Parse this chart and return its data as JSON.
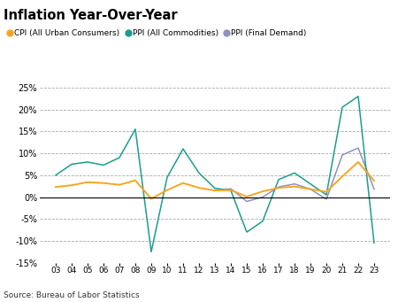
{
  "title": "Inflation Year-Over-Year",
  "source": "Source: Bureau of Labor Statistics",
  "x_labels": [
    "03",
    "04",
    "05",
    "06",
    "07",
    "08",
    "09",
    "10",
    "11",
    "12",
    "13",
    "14",
    "15",
    "16",
    "17",
    "18",
    "19",
    "20",
    "21",
    "22",
    "23"
  ],
  "cpi_color": "#F5A623",
  "ppi_all_color": "#1A9E8C",
  "ppi_fd_color": "#9090C0",
  "ylim": [
    -15,
    25
  ],
  "yticks": [
    -15,
    -10,
    -5,
    0,
    5,
    10,
    15,
    20,
    25
  ],
  "cpi": [
    2.3,
    2.7,
    3.4,
    3.2,
    2.8,
    3.8,
    -0.4,
    1.6,
    3.2,
    2.1,
    1.5,
    1.6,
    0.1,
    1.3,
    2.1,
    2.4,
    1.8,
    1.2,
    4.7,
    8.0,
    3.7
  ],
  "ppi_all": [
    5.0,
    7.5,
    8.0,
    7.3,
    9.0,
    15.5,
    -12.5,
    4.5,
    11.0,
    5.5,
    2.0,
    1.5,
    -8.0,
    -5.5,
    4.0,
    5.5,
    3.0,
    0.5,
    20.5,
    23.0,
    -10.5
  ],
  "ppi_fd": [
    null,
    null,
    null,
    null,
    null,
    null,
    null,
    null,
    null,
    null,
    1.5,
    1.9,
    -1.0,
    0.0,
    2.3,
    3.0,
    1.8,
    -0.5,
    9.6,
    11.2,
    1.8
  ]
}
